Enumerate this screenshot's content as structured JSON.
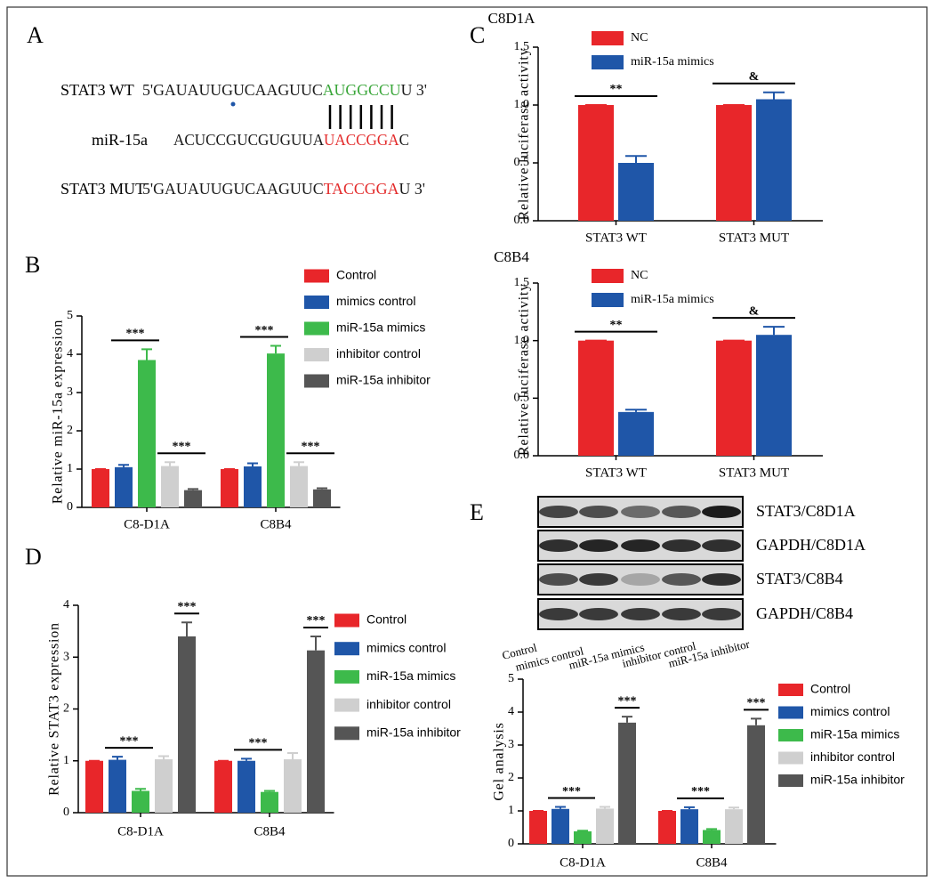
{
  "panel_labels": [
    "A",
    "B",
    "C",
    "D",
    "E"
  ],
  "sequence_panel": {
    "rows": [
      {
        "label": "STAT3 WT",
        "segments": [
          "5'GAUAUUGUCAAGUUC",
          "AUGGCCU",
          "U 3'"
        ],
        "segment_colors": [
          "#1a1a1a",
          "#3aa63a",
          "#1a1a1a"
        ]
      },
      {
        "label": "miR-15a",
        "segments": [
          "ACUCCGUCGUGUUA",
          "UACCGGA",
          "C"
        ],
        "segment_colors": [
          "#1a1a1a",
          "#e32b2b",
          "#1a1a1a"
        ]
      },
      {
        "label": "STAT3 MUT",
        "segments": [
          "5'GAUAUUGUCAAGUUC",
          "TACCGGA",
          "U 3'"
        ],
        "segment_colors": [
          "#1a1a1a",
          "#e32b2b",
          "#1a1a1a"
        ]
      }
    ]
  },
  "blot": {
    "row_labels": [
      "STAT3/C8D1A",
      "GAPDH/C8D1A",
      "STAT3/C8B4",
      "GAPDH/C8B4"
    ],
    "lane_labels": [
      "Control",
      "mimics control",
      "miR-15a mimics",
      "inhibitor control",
      "miR-15a inhibitor"
    ]
  },
  "chart_data": [
    {
      "type": "bar",
      "y_label": "Relative miR-15a expression",
      "categories": [
        "C8-D1A",
        "C8B4"
      ],
      "series": [
        {
          "name": "Control",
          "color": "#e8262a",
          "values": [
            1.0,
            1.0
          ],
          "errors": [
            0.0,
            0.0
          ]
        },
        {
          "name": "mimics control",
          "color": "#1f56a8",
          "values": [
            1.05,
            1.07
          ],
          "errors": [
            0.06,
            0.08
          ]
        },
        {
          "name": "miR-15a mimics",
          "color": "#3dba4b",
          "values": [
            3.85,
            4.02
          ],
          "errors": [
            0.28,
            0.2
          ]
        },
        {
          "name": "inhibitor control",
          "color": "#cfcfcf",
          "values": [
            1.08,
            1.08
          ],
          "errors": [
            0.1,
            0.1
          ]
        },
        {
          "name": "miR-15a inhibitor",
          "color": "#555555",
          "values": [
            0.45,
            0.47
          ],
          "errors": [
            0.03,
            0.03
          ]
        }
      ],
      "ylim": [
        0,
        5
      ],
      "yticks": [
        0,
        1,
        2,
        3,
        4,
        5
      ],
      "annotations": [
        "***",
        "***",
        "***",
        "***"
      ]
    },
    {
      "type": "bar",
      "title": "C8D1A",
      "y_label": "Relative luciferase activity",
      "categories": [
        "STAT3 WT",
        "STAT3 MUT"
      ],
      "series": [
        {
          "name": "NC",
          "color": "#e8262a",
          "values": [
            1.0,
            1.0
          ],
          "errors": [
            0.0,
            0.0
          ]
        },
        {
          "name": "miR-15a mimics",
          "color": "#1f56a8",
          "values": [
            0.5,
            1.05
          ],
          "errors": [
            0.06,
            0.06
          ]
        }
      ],
      "ylim": [
        0,
        1.5
      ],
      "yticks": [
        {
          "value": 0,
          "label": "0.0"
        },
        0.5,
        {
          "value": 1,
          "label": "1.0"
        },
        1.5
      ],
      "annotations": [
        "**",
        "&"
      ]
    },
    {
      "type": "bar",
      "title": "C8B4",
      "y_label": "Relative luciferase activity",
      "categories": [
        "STAT3 WT",
        "STAT3 MUT"
      ],
      "series": [
        {
          "name": "NC",
          "color": "#e8262a",
          "values": [
            1.0,
            1.0
          ],
          "errors": [
            0.0,
            0.0
          ]
        },
        {
          "name": "miR-15a mimics",
          "color": "#1f56a8",
          "values": [
            0.38,
            1.05
          ],
          "errors": [
            0.02,
            0.07
          ]
        }
      ],
      "ylim": [
        0,
        1.5
      ],
      "yticks": [
        {
          "value": 0,
          "label": "0.0"
        },
        0.5,
        {
          "value": 1,
          "label": "1.0"
        },
        1.5
      ],
      "annotations": [
        "**",
        "&"
      ]
    },
    {
      "type": "bar",
      "y_label": "Relative STAT3 expression",
      "categories": [
        "C8-D1A",
        "C8B4"
      ],
      "series": [
        {
          "name": "Control",
          "color": "#e8262a",
          "values": [
            1.0,
            1.0
          ],
          "errors": [
            0.0,
            0.0
          ]
        },
        {
          "name": "mimics control",
          "color": "#1f56a8",
          "values": [
            1.02,
            1.0
          ],
          "errors": [
            0.06,
            0.04
          ]
        },
        {
          "name": "miR-15a mimics",
          "color": "#3dba4b",
          "values": [
            0.42,
            0.4
          ],
          "errors": [
            0.04,
            0.02
          ]
        },
        {
          "name": "inhibitor control",
          "color": "#cfcfcf",
          "values": [
            1.03,
            1.03
          ],
          "errors": [
            0.06,
            0.12
          ]
        },
        {
          "name": "miR-15a inhibitor",
          "color": "#555555",
          "values": [
            3.4,
            3.13
          ],
          "errors": [
            0.27,
            0.27
          ]
        }
      ],
      "ylim": [
        0,
        4
      ],
      "yticks": [
        0,
        1,
        2,
        3,
        4
      ],
      "annotations": [
        "***",
        "***",
        "***",
        "***"
      ]
    },
    {
      "type": "bar",
      "y_label": "Gel analysis",
      "categories": [
        "C8-D1A",
        "C8B4"
      ],
      "series": [
        {
          "name": "Control",
          "color": "#e8262a",
          "values": [
            1.0,
            1.0
          ],
          "errors": [
            0.0,
            0.0
          ]
        },
        {
          "name": "mimics control",
          "color": "#1f56a8",
          "values": [
            1.06,
            1.05
          ],
          "errors": [
            0.06,
            0.06
          ]
        },
        {
          "name": "miR-15a mimics",
          "color": "#3dba4b",
          "values": [
            0.38,
            0.42
          ],
          "errors": [
            0.02,
            0.03
          ]
        },
        {
          "name": "inhibitor control",
          "color": "#cfcfcf",
          "values": [
            1.07,
            1.05
          ],
          "errors": [
            0.05,
            0.05
          ]
        },
        {
          "name": "miR-15a inhibitor",
          "color": "#555555",
          "values": [
            3.68,
            3.6
          ],
          "errors": [
            0.18,
            0.2
          ]
        }
      ],
      "ylim": [
        0,
        5
      ],
      "yticks": [
        0,
        1,
        2,
        3,
        4,
        5
      ],
      "annotations": [
        "***",
        "***",
        "***",
        "***"
      ]
    }
  ]
}
